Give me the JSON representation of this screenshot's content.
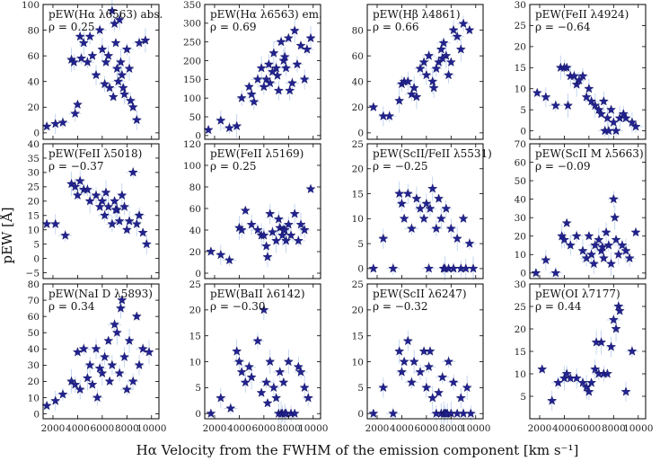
{
  "figure": {
    "xlabel": "Hα Velocity from the FWHM of the emission component [km s⁻¹]",
    "ylabel": "pEW [Å]",
    "xticks": [
      2000,
      4000,
      6000,
      8000,
      10000
    ],
    "xlim": [
      1200,
      10600
    ],
    "colors": {
      "marker": "#22228f",
      "errorbar": "#aac4e8"
    }
  },
  "chart_data": [
    {
      "type": "scatter",
      "title": "pEW(Hα λ6563) abs.",
      "rho": "ρ = 0.25",
      "ylim": [
        -5,
        100
      ],
      "yticks": [
        0,
        20,
        40,
        60,
        80,
        100
      ],
      "x": [
        1500,
        2200,
        2800,
        3500,
        3700,
        4000,
        4200,
        4300,
        4500,
        5000,
        5200,
        5500,
        5800,
        6000,
        6200,
        6300,
        6500,
        6600,
        6800,
        7000,
        7100,
        7200,
        7300,
        7500,
        7600,
        7700,
        7800,
        8000,
        8200,
        8300,
        8500,
        8800,
        9000,
        9500,
        3800,
        6900,
        7400,
        4800
      ],
      "y": [
        5,
        7,
        8,
        57,
        55,
        22,
        75,
        58,
        70,
        75,
        60,
        45,
        80,
        65,
        38,
        55,
        60,
        35,
        95,
        85,
        70,
        50,
        40,
        55,
        45,
        35,
        30,
        65,
        50,
        25,
        20,
        10,
        70,
        72,
        15,
        28,
        88,
        55
      ]
    },
    {
      "type": "scatter",
      "title": "pEW(Hα λ6563) em.",
      "rho": "ρ = 0.69",
      "ylim": [
        -10,
        350
      ],
      "yticks": [
        0,
        50,
        100,
        150,
        200,
        250,
        300,
        350
      ],
      "x": [
        1500,
        2500,
        3200,
        3800,
        4200,
        4800,
        5000,
        5500,
        5800,
        6000,
        6200,
        6400,
        6500,
        6800,
        7000,
        7100,
        7200,
        7400,
        7600,
        7800,
        8000,
        8100,
        8300,
        8500,
        8700,
        9000,
        9300,
        9500,
        9800,
        5200,
        6700,
        7700
      ],
      "y": [
        15,
        40,
        20,
        25,
        100,
        130,
        110,
        150,
        180,
        130,
        150,
        190,
        140,
        220,
        180,
        160,
        120,
        250,
        200,
        180,
        260,
        120,
        140,
        280,
        190,
        240,
        150,
        230,
        260,
        90,
        170,
        210
      ]
    },
    {
      "type": "scatter",
      "title": "pEW(Hβ λ4861)",
      "rho": "ρ = 0.66",
      "ylim": [
        -5,
        100
      ],
      "yticks": [
        0,
        20,
        40,
        60,
        80
      ],
      "x": [
        1700,
        2500,
        3000,
        3800,
        4000,
        4200,
        4500,
        4800,
        5200,
        5500,
        5800,
        6000,
        6200,
        6500,
        6800,
        7000,
        7200,
        7400,
        7600,
        7800,
        8000,
        8200,
        8500,
        8800,
        9000,
        9500,
        6600,
        7300,
        5000
      ],
      "y": [
        20,
        13,
        13,
        25,
        38,
        40,
        40,
        30,
        28,
        50,
        55,
        45,
        60,
        40,
        50,
        55,
        65,
        70,
        60,
        45,
        55,
        80,
        75,
        65,
        85,
        80,
        35,
        58,
        35
      ]
    },
    {
      "type": "scatter",
      "title": "pEW(FeII λ4924)",
      "rho": "ρ = −0.64",
      "ylim": [
        -2,
        30
      ],
      "yticks": [
        0,
        5,
        10,
        15,
        20,
        25,
        30
      ],
      "x": [
        1800,
        2500,
        3300,
        3700,
        4000,
        4200,
        4500,
        4800,
        5000,
        5500,
        5800,
        6000,
        6200,
        6500,
        6800,
        7000,
        7200,
        7300,
        7500,
        7600,
        7800,
        8000,
        8200,
        8500,
        8800,
        9000,
        9500,
        9800,
        4300,
        5200
      ],
      "y": [
        9,
        8,
        6,
        15,
        15,
        15,
        13,
        13,
        11,
        13,
        8,
        10,
        7,
        6,
        5,
        4,
        7,
        0,
        3,
        0,
        5,
        2,
        0,
        3,
        4,
        3,
        2,
        1,
        6,
        12
      ]
    },
    {
      "type": "scatter",
      "title": "pEW(FeII λ5018)",
      "rho": "ρ = −0.37",
      "ylim": [
        -7,
        40
      ],
      "yticks": [
        -5,
        0,
        5,
        10,
        15,
        20,
        25,
        30,
        35,
        40
      ],
      "x": [
        1500,
        2200,
        3000,
        3500,
        3800,
        4000,
        4200,
        4500,
        5000,
        5500,
        5800,
        6000,
        6200,
        6500,
        6800,
        7000,
        7200,
        7400,
        7600,
        7800,
        8000,
        8200,
        8500,
        8800,
        9000,
        9300,
        9600,
        4800,
        6300,
        7100
      ],
      "y": [
        12,
        12,
        8,
        26,
        25,
        22,
        27,
        24,
        20,
        22,
        18,
        20,
        15,
        18,
        12,
        20,
        17,
        13,
        22,
        18,
        10,
        13,
        30,
        12,
        15,
        9,
        5,
        24,
        23,
        17
      ]
    },
    {
      "type": "scatter",
      "title": "pEW(FeII λ5169)",
      "rho": "ρ = 0.25",
      "ylim": [
        -5,
        120
      ],
      "yticks": [
        0,
        20,
        40,
        60,
        80,
        100,
        120
      ],
      "x": [
        1700,
        2500,
        3200,
        4000,
        4200,
        4500,
        5000,
        5500,
        5800,
        6000,
        6200,
        6500,
        6700,
        7000,
        7200,
        7300,
        7500,
        7600,
        7800,
        8000,
        8200,
        8500,
        8800,
        9000,
        9300,
        9800,
        6300,
        7700
      ],
      "y": [
        20,
        17,
        12,
        42,
        40,
        58,
        45,
        40,
        35,
        35,
        25,
        55,
        38,
        30,
        50,
        42,
        35,
        40,
        30,
        45,
        35,
        55,
        30,
        45,
        40,
        78,
        15,
        40
      ]
    },
    {
      "type": "scatter",
      "title": "pEW(ScII/FeII λ5531)",
      "rho": "ρ = −0.25",
      "ylim": [
        -2,
        25
      ],
      "yticks": [
        0,
        5,
        10,
        15,
        20,
        25
      ],
      "x": [
        1700,
        2500,
        3300,
        3800,
        4000,
        4200,
        4500,
        4800,
        5200,
        5500,
        5800,
        6000,
        6200,
        6500,
        6800,
        7000,
        7200,
        7400,
        7500,
        7600,
        7800,
        8000,
        8200,
        8500,
        8800,
        9000,
        9200,
        9500,
        9800,
        6300
      ],
      "y": [
        0,
        6,
        0,
        15,
        13,
        10,
        15,
        8,
        14,
        12,
        10,
        13,
        0,
        16,
        8,
        14,
        10,
        0,
        0,
        12,
        0,
        8,
        0,
        6,
        0,
        10,
        0,
        5,
        0,
        12
      ]
    },
    {
      "type": "scatter",
      "title": "pEW(ScII M λ5663)",
      "rho": "ρ = −0.09",
      "ylim": [
        -3,
        70
      ],
      "yticks": [
        0,
        10,
        20,
        30,
        40,
        50,
        60,
        70
      ],
      "x": [
        1700,
        2500,
        3300,
        3800,
        4000,
        4200,
        4500,
        5000,
        5500,
        5800,
        6000,
        6200,
        6500,
        6800,
        7000,
        7200,
        7400,
        7600,
        7800,
        8000,
        8200,
        8400,
        8700,
        9000,
        9300,
        9800,
        6400,
        7100,
        8100
      ],
      "y": [
        0,
        7,
        0,
        20,
        18,
        27,
        15,
        20,
        12,
        8,
        20,
        10,
        15,
        18,
        12,
        8,
        22,
        15,
        5,
        40,
        18,
        10,
        15,
        12,
        8,
        22,
        5,
        14,
        30
      ]
    },
    {
      "type": "scatter",
      "title": "pEW(NaI D λ5893)",
      "rho": "ρ = 0.34",
      "ylim": [
        -3,
        80
      ],
      "yticks": [
        0,
        10,
        20,
        30,
        40,
        50,
        60,
        70,
        80
      ],
      "x": [
        1500,
        2200,
        2800,
        3500,
        3800,
        4000,
        4200,
        4500,
        4800,
        5000,
        5200,
        5500,
        5800,
        6000,
        6200,
        6500,
        6800,
        7000,
        7200,
        7400,
        7600,
        7800,
        8000,
        8200,
        8500,
        8800,
        9000,
        9300,
        9800,
        5600,
        6600,
        7500
      ],
      "y": [
        5,
        8,
        12,
        20,
        18,
        38,
        15,
        40,
        22,
        30,
        18,
        40,
        28,
        25,
        35,
        45,
        30,
        55,
        50,
        25,
        70,
        35,
        15,
        45,
        20,
        60,
        30,
        40,
        38,
        10,
        20,
        65
      ]
    },
    {
      "type": "scatter",
      "title": "pEW(BaII λ6142)",
      "rho": "ρ = −0.30",
      "ylim": [
        -1,
        25
      ],
      "yticks": [
        0,
        5,
        10,
        15,
        20,
        25
      ],
      "x": [
        1700,
        2500,
        3300,
        3800,
        4000,
        4200,
        4500,
        4800,
        5000,
        5500,
        5800,
        6000,
        6200,
        6500,
        6800,
        7000,
        7200,
        7300,
        7400,
        7500,
        7600,
        7700,
        7800,
        8000,
        8200,
        8500,
        8800,
        9000,
        9300,
        9600,
        6300
      ],
      "y": [
        0,
        3,
        1,
        12,
        10,
        8,
        6,
        9,
        7,
        14,
        4,
        20,
        6,
        10,
        5,
        3,
        0,
        8,
        0,
        0,
        6,
        0,
        0,
        10,
        0,
        0,
        9,
        8,
        5,
        3,
        2
      ]
    },
    {
      "type": "scatter",
      "title": "pEW(ScII λ6247)",
      "rho": "ρ = −0.32",
      "ylim": [
        -1,
        25
      ],
      "yticks": [
        0,
        5,
        10,
        15,
        20,
        25
      ],
      "x": [
        1700,
        2500,
        3300,
        3800,
        4000,
        4200,
        4500,
        4800,
        5000,
        5500,
        5800,
        6000,
        6200,
        6500,
        6800,
        7000,
        7200,
        7300,
        7400,
        7500,
        7600,
        7700,
        7800,
        8000,
        8200,
        8500,
        8800,
        9000,
        9300,
        9600,
        6300
      ],
      "y": [
        0,
        5,
        0,
        12,
        8,
        10,
        14,
        6,
        10,
        8,
        12,
        5,
        9,
        3,
        0,
        4,
        0,
        7,
        0,
        0,
        0,
        0,
        10,
        0,
        6,
        0,
        3,
        0,
        5,
        0,
        12
      ]
    },
    {
      "type": "scatter",
      "title": "pEW(OI λ7177)",
      "rho": "ρ = 0.44",
      "ylim": [
        0,
        30
      ],
      "yticks": [
        5,
        10,
        15,
        20,
        25,
        30
      ],
      "x": [
        2200,
        3000,
        3500,
        4000,
        4200,
        4500,
        5000,
        5500,
        5800,
        6000,
        6200,
        6500,
        6800,
        7000,
        7200,
        7500,
        7800,
        8000,
        8200,
        8400,
        8500,
        9000,
        9500,
        6600
      ],
      "y": [
        11,
        4,
        8,
        9,
        10,
        9,
        9,
        8,
        7,
        6,
        8,
        11,
        10,
        17,
        10,
        10,
        16,
        22,
        20,
        25,
        24,
        6,
        15,
        17
      ]
    }
  ]
}
